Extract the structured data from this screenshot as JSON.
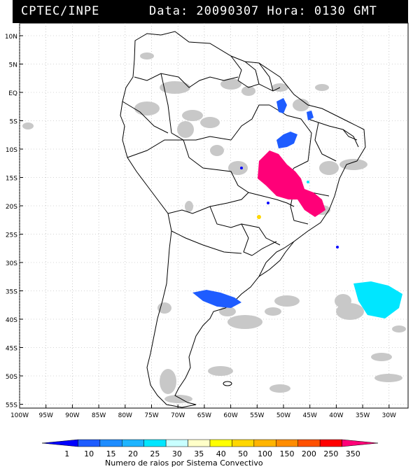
{
  "header": {
    "org": "CPTEC/INPE",
    "datetime": "Data: 20090307 Hora: 0130 GMT"
  },
  "map": {
    "lat_labels": [
      "10N",
      "5N",
      "EQ",
      "5S",
      "10S",
      "15S",
      "20S",
      "25S",
      "30S",
      "35S",
      "40S",
      "45S",
      "50S",
      "55S"
    ],
    "lon_labels": [
      "100W",
      "95W",
      "90W",
      "85W",
      "80W",
      "75W",
      "70W",
      "65W",
      "60W",
      "55W",
      "50W",
      "45W",
      "40W",
      "35W",
      "30W"
    ],
    "background": "#ffffff",
    "land_outline": "#000000",
    "cloud_color": "#c8c8c8"
  },
  "colorbar": {
    "ticks": [
      "1",
      "10",
      "15",
      "20",
      "25",
      "30",
      "35",
      "40",
      "50",
      "100",
      "150",
      "200",
      "250",
      "350"
    ],
    "colors": [
      "#0000ff",
      "#1e5cff",
      "#1e8cff",
      "#1eb4ff",
      "#00e6ff",
      "#c8ffff",
      "#ffffc8",
      "#ffff00",
      "#ffd700",
      "#ffb400",
      "#ff8c00",
      "#ff5000",
      "#ff0000",
      "#ff0078"
    ],
    "label": "Numero de raios por Sistema Convectivo"
  }
}
